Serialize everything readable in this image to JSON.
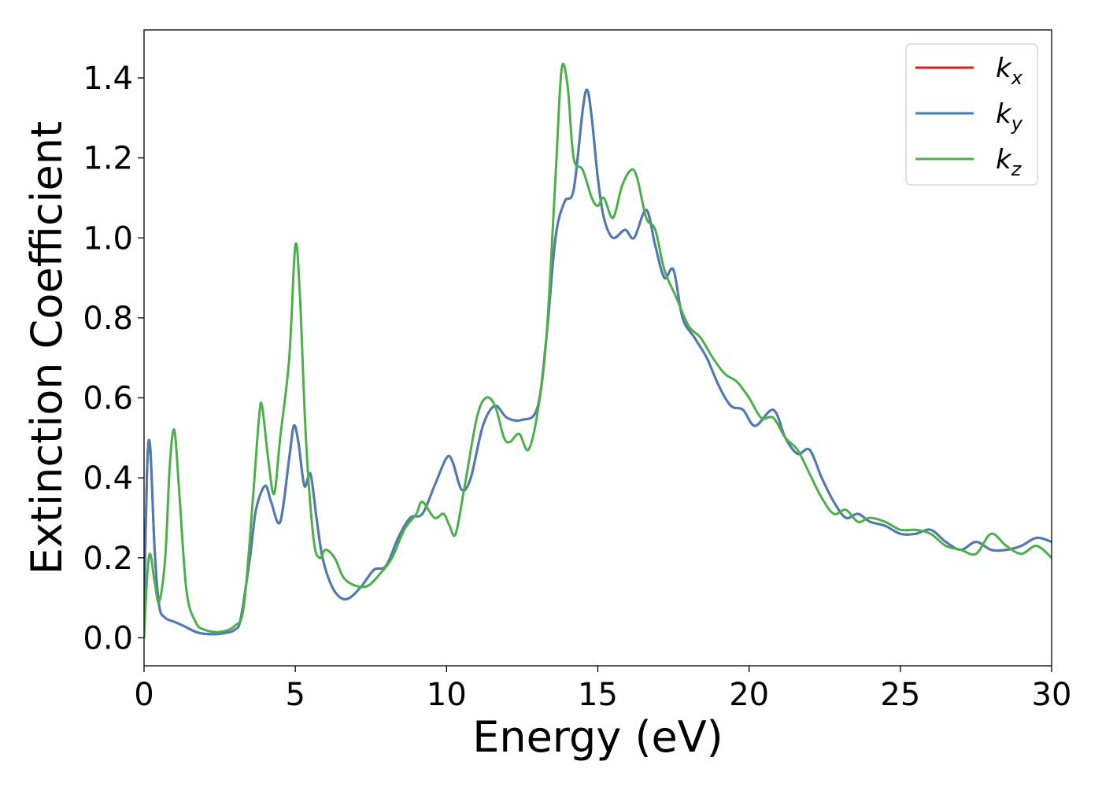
{
  "chart_data": {
    "type": "line",
    "title": "",
    "xlabel": "Energy (eV)",
    "ylabel": "Extinction Coefficient",
    "xlim": [
      0,
      30
    ],
    "ylim": [
      -0.07,
      1.52
    ],
    "xticks": [
      "0",
      "5",
      "10",
      "15",
      "20",
      "25",
      "30"
    ],
    "yticks": [
      "0.0",
      "0.2",
      "0.4",
      "0.6",
      "0.8",
      "1.0",
      "1.2",
      "1.4"
    ],
    "grid": false,
    "legend_position": "top-right",
    "series": [
      {
        "name": "k_x",
        "legend_base": "k",
        "legend_sub": "x",
        "color": "#e41a1c",
        "x": [
          0,
          0.1,
          0.2,
          0.35,
          0.5,
          0.7,
          1.0,
          1.3,
          1.7,
          2.0,
          2.5,
          3.0,
          3.2,
          3.5,
          3.7,
          4.0,
          4.2,
          4.5,
          4.8,
          4.95,
          5.1,
          5.3,
          5.5,
          5.7,
          5.9,
          6.2,
          6.5,
          6.8,
          7.2,
          7.6,
          8.0,
          8.4,
          8.8,
          9.2,
          9.6,
          10.0,
          10.2,
          10.5,
          10.8,
          11.2,
          11.6,
          12.0,
          12.5,
          13.0,
          13.3,
          13.6,
          13.9,
          14.2,
          14.5,
          14.65,
          14.8,
          15.0,
          15.2,
          15.5,
          15.9,
          16.2,
          16.6,
          16.9,
          17.2,
          17.5,
          17.8,
          18.2,
          18.6,
          19.0,
          19.4,
          19.8,
          20.2,
          20.8,
          21.2,
          21.6,
          22.0,
          22.4,
          22.8,
          23.2,
          23.6,
          24.0,
          24.5,
          25.0,
          25.5,
          26.0,
          26.5,
          27.0,
          27.5,
          28.0,
          28.5,
          29.0,
          29.5,
          30.0
        ],
        "y": [
          0.06,
          0.42,
          0.48,
          0.22,
          0.08,
          0.05,
          0.04,
          0.03,
          0.015,
          0.01,
          0.01,
          0.02,
          0.05,
          0.2,
          0.32,
          0.38,
          0.34,
          0.29,
          0.45,
          0.53,
          0.49,
          0.38,
          0.41,
          0.3,
          0.2,
          0.13,
          0.1,
          0.1,
          0.13,
          0.17,
          0.18,
          0.25,
          0.3,
          0.31,
          0.38,
          0.45,
          0.44,
          0.37,
          0.4,
          0.53,
          0.58,
          0.55,
          0.545,
          0.575,
          0.75,
          1.0,
          1.09,
          1.12,
          1.32,
          1.37,
          1.3,
          1.15,
          1.05,
          1.0,
          1.02,
          1.0,
          1.07,
          0.98,
          0.9,
          0.92,
          0.8,
          0.75,
          0.7,
          0.63,
          0.58,
          0.57,
          0.53,
          0.57,
          0.5,
          0.46,
          0.47,
          0.4,
          0.34,
          0.3,
          0.31,
          0.29,
          0.28,
          0.26,
          0.26,
          0.27,
          0.24,
          0.22,
          0.24,
          0.22,
          0.22,
          0.23,
          0.25,
          0.24
        ]
      },
      {
        "name": "k_y",
        "legend_base": "k",
        "legend_sub": "y",
        "color": "#4a7db5",
        "x": [
          0,
          0.1,
          0.2,
          0.35,
          0.5,
          0.7,
          1.0,
          1.3,
          1.7,
          2.0,
          2.5,
          3.0,
          3.2,
          3.5,
          3.7,
          4.0,
          4.2,
          4.5,
          4.8,
          4.95,
          5.1,
          5.3,
          5.5,
          5.7,
          5.9,
          6.2,
          6.5,
          6.8,
          7.2,
          7.6,
          8.0,
          8.4,
          8.8,
          9.2,
          9.6,
          10.0,
          10.2,
          10.5,
          10.8,
          11.2,
          11.6,
          12.0,
          12.5,
          13.0,
          13.3,
          13.6,
          13.9,
          14.2,
          14.5,
          14.65,
          14.8,
          15.0,
          15.2,
          15.5,
          15.9,
          16.2,
          16.6,
          16.9,
          17.2,
          17.5,
          17.8,
          18.2,
          18.6,
          19.0,
          19.4,
          19.8,
          20.2,
          20.8,
          21.2,
          21.6,
          22.0,
          22.4,
          22.8,
          23.2,
          23.6,
          24.0,
          24.5,
          25.0,
          25.5,
          26.0,
          26.5,
          27.0,
          27.5,
          28.0,
          28.5,
          29.0,
          29.5,
          30.0
        ],
        "y": [
          0.06,
          0.42,
          0.48,
          0.22,
          0.08,
          0.05,
          0.04,
          0.03,
          0.015,
          0.01,
          0.01,
          0.02,
          0.05,
          0.2,
          0.32,
          0.38,
          0.34,
          0.29,
          0.45,
          0.53,
          0.49,
          0.38,
          0.41,
          0.3,
          0.2,
          0.13,
          0.1,
          0.1,
          0.13,
          0.17,
          0.18,
          0.25,
          0.3,
          0.31,
          0.38,
          0.45,
          0.44,
          0.37,
          0.4,
          0.53,
          0.58,
          0.55,
          0.545,
          0.575,
          0.75,
          1.0,
          1.09,
          1.12,
          1.32,
          1.37,
          1.3,
          1.15,
          1.05,
          1.0,
          1.02,
          1.0,
          1.07,
          0.98,
          0.9,
          0.92,
          0.8,
          0.75,
          0.7,
          0.63,
          0.58,
          0.57,
          0.53,
          0.57,
          0.5,
          0.46,
          0.47,
          0.4,
          0.34,
          0.3,
          0.31,
          0.29,
          0.28,
          0.26,
          0.26,
          0.27,
          0.24,
          0.22,
          0.24,
          0.22,
          0.22,
          0.23,
          0.25,
          0.24
        ]
      },
      {
        "name": "k_z",
        "legend_base": "k",
        "legend_sub": "z",
        "color": "#4daf4a",
        "x": [
          0,
          0.1,
          0.2,
          0.35,
          0.5,
          0.7,
          0.85,
          1.0,
          1.15,
          1.4,
          1.7,
          2.0,
          2.5,
          3.0,
          3.3,
          3.6,
          3.8,
          3.9,
          4.1,
          4.3,
          4.5,
          4.8,
          5.0,
          5.15,
          5.35,
          5.6,
          5.8,
          6.0,
          6.3,
          6.6,
          7.0,
          7.4,
          7.8,
          8.2,
          8.6,
          9.0,
          9.2,
          9.6,
          9.9,
          10.1,
          10.3,
          10.6,
          11.0,
          11.3,
          11.6,
          11.9,
          12.1,
          12.4,
          12.7,
          13.0,
          13.3,
          13.6,
          13.8,
          14.0,
          14.2,
          14.5,
          14.8,
          15.0,
          15.2,
          15.5,
          15.8,
          16.1,
          16.3,
          16.6,
          16.9,
          17.2,
          17.6,
          18.0,
          18.4,
          18.8,
          19.2,
          19.6,
          20.0,
          20.4,
          20.8,
          21.2,
          21.6,
          22.0,
          22.4,
          22.8,
          23.2,
          23.6,
          24.0,
          24.5,
          25.0,
          25.5,
          26.0,
          26.5,
          27.0,
          27.5,
          28.0,
          28.5,
          29.0,
          29.5,
          30.0
        ],
        "y": [
          0.0,
          0.15,
          0.21,
          0.14,
          0.09,
          0.2,
          0.43,
          0.52,
          0.38,
          0.12,
          0.04,
          0.02,
          0.015,
          0.03,
          0.08,
          0.35,
          0.55,
          0.58,
          0.45,
          0.36,
          0.5,
          0.7,
          0.98,
          0.86,
          0.5,
          0.25,
          0.2,
          0.22,
          0.2,
          0.15,
          0.13,
          0.13,
          0.16,
          0.2,
          0.27,
          0.31,
          0.34,
          0.3,
          0.31,
          0.28,
          0.26,
          0.38,
          0.55,
          0.6,
          0.58,
          0.5,
          0.49,
          0.51,
          0.47,
          0.56,
          0.75,
          1.15,
          1.42,
          1.38,
          1.2,
          1.17,
          1.1,
          1.08,
          1.1,
          1.05,
          1.13,
          1.17,
          1.15,
          1.05,
          1.02,
          0.92,
          0.85,
          0.78,
          0.75,
          0.7,
          0.66,
          0.64,
          0.6,
          0.55,
          0.55,
          0.5,
          0.47,
          0.41,
          0.35,
          0.31,
          0.32,
          0.29,
          0.3,
          0.29,
          0.27,
          0.27,
          0.26,
          0.23,
          0.22,
          0.21,
          0.26,
          0.23,
          0.21,
          0.23,
          0.2
        ]
      }
    ]
  }
}
